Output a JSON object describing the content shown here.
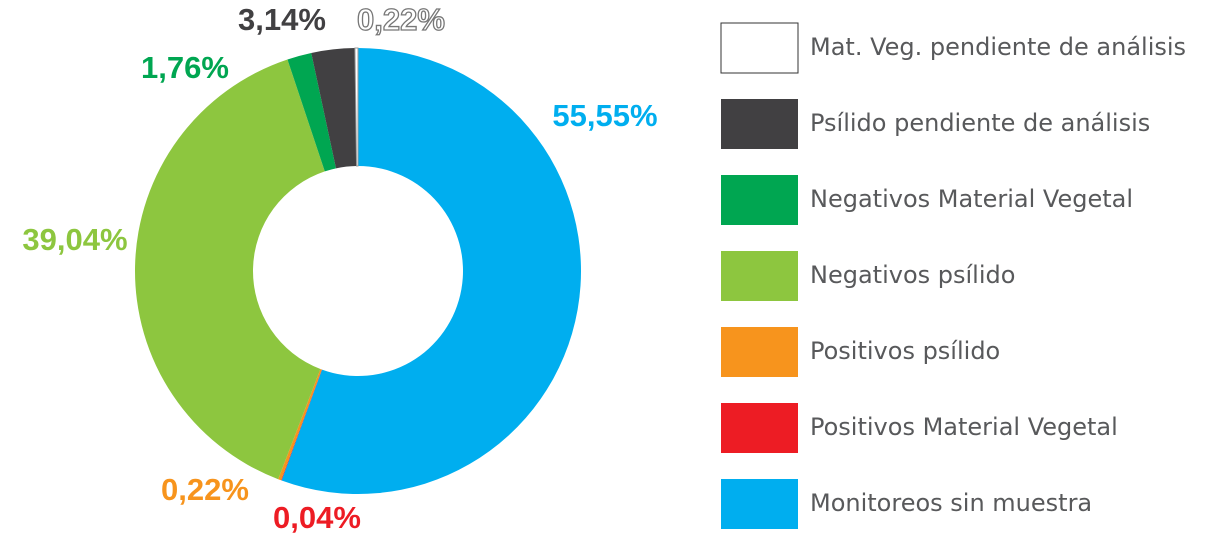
{
  "chart_data": {
    "type": "donut",
    "categories": [
      "Monitoreos sin muestra",
      "Positivos Material Vegetal",
      "Positivos psílido",
      "Negativos psílido",
      "Negativos Material Vegetal",
      "Psílido pendiente de análisis",
      "Mat. Veg. pendiente de análisis"
    ],
    "values": [
      55.55,
      0.04,
      0.22,
      39.04,
      1.76,
      3.14,
      0.22
    ],
    "value_labels": [
      "55,55%",
      "0,04%",
      "0,22%",
      "39,04%",
      "1,76%",
      "3,14%",
      "0,22%"
    ],
    "colors": [
      "#00aeef",
      "#ed1c24",
      "#f7941d",
      "#8dc63f",
      "#00a651",
      "#414042",
      "#ffffff"
    ],
    "legend": "right"
  }
}
